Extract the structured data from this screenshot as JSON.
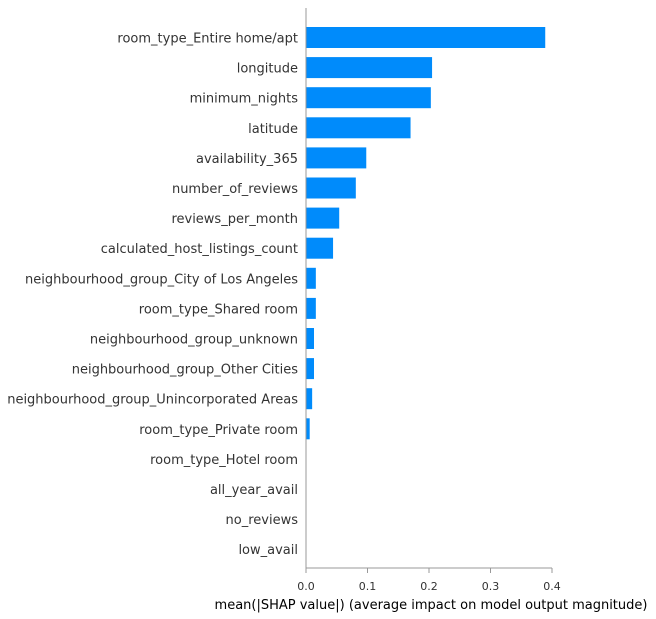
{
  "chart_data": {
    "type": "bar",
    "orientation": "horizontal",
    "title": "",
    "xlabel": "mean(|SHAP value|) (average impact on model output magnitude)",
    "ylabel": "",
    "xlim": [
      0,
      0.4
    ],
    "xticks": [
      "0.0",
      "0.1",
      "0.2",
      "0.3",
      "0.4"
    ],
    "grid": false,
    "bar_color": "#008bfb",
    "categories": [
      "room_type_Entire home/apt",
      "longitude",
      "minimum_nights",
      "latitude",
      "availability_365",
      "number_of_reviews",
      "reviews_per_month",
      "calculated_host_listings_count",
      "neighbourhood_group_City of Los Angeles",
      "room_type_Shared room",
      "neighbourhood_group_unknown",
      "neighbourhood_group_Other Cities",
      "neighbourhood_group_Unincorporated Areas",
      "room_type_Private room",
      "room_type_Hotel room",
      "all_year_avail",
      "no_reviews",
      "low_avail"
    ],
    "values": [
      0.389,
      0.205,
      0.203,
      0.17,
      0.098,
      0.081,
      0.054,
      0.044,
      0.016,
      0.016,
      0.013,
      0.013,
      0.01,
      0.006,
      0.0,
      0.0,
      0.0,
      0.0
    ]
  }
}
